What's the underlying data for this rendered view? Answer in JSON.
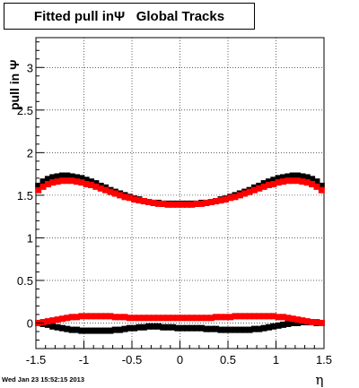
{
  "chart_data": {
    "type": "scatter",
    "title": "Fitted pull inΨ   Global Tracks",
    "xlabel": "η",
    "ylabel": "pull in  Ψ",
    "xlim": [
      -1.5,
      1.5
    ],
    "ylim": [
      -0.3,
      3.35
    ],
    "grid": true,
    "x_ticks": [
      -1.5,
      -1,
      -0.5,
      0,
      0.5,
      1,
      1.5
    ],
    "x_tick_labels": [
      "-1.5",
      "-1",
      "-0.5",
      "0",
      "0.5",
      "1",
      "1.5"
    ],
    "y_ticks": [
      0,
      0.5,
      1,
      1.5,
      2,
      2.5,
      3
    ],
    "y_tick_labels": [
      "0",
      "0.5",
      "1",
      "1.5",
      "2",
      "2.5",
      "3"
    ],
    "series": [
      {
        "color": "#000000",
        "marker": "square",
        "x": [
          -1.475,
          -1.425,
          -1.375,
          -1.325,
          -1.275,
          -1.225,
          -1.175,
          -1.125,
          -1.075,
          -1.025,
          -0.975,
          -0.925,
          -0.875,
          -0.825,
          -0.775,
          -0.725,
          -0.675,
          -0.625,
          -0.575,
          -0.525,
          -0.475,
          -0.425,
          -0.375,
          -0.325,
          -0.275,
          -0.225,
          -0.175,
          -0.125,
          -0.075,
          -0.025,
          0.025,
          0.075,
          0.125,
          0.175,
          0.225,
          0.275,
          0.325,
          0.375,
          0.425,
          0.475,
          0.525,
          0.575,
          0.625,
          0.675,
          0.725,
          0.775,
          0.825,
          0.875,
          0.925,
          0.975,
          1.025,
          1.075,
          1.125,
          1.175,
          1.225,
          1.275,
          1.325,
          1.375,
          1.425,
          1.475
        ],
        "y": [
          1.61,
          1.66,
          1.69,
          1.71,
          1.72,
          1.73,
          1.73,
          1.72,
          1.71,
          1.7,
          1.68,
          1.66,
          1.64,
          1.61,
          1.59,
          1.56,
          1.54,
          1.52,
          1.5,
          1.48,
          1.46,
          1.45,
          1.43,
          1.42,
          1.41,
          1.41,
          1.4,
          1.4,
          1.4,
          1.4,
          1.4,
          1.4,
          1.4,
          1.4,
          1.41,
          1.41,
          1.42,
          1.43,
          1.45,
          1.46,
          1.48,
          1.5,
          1.52,
          1.54,
          1.56,
          1.59,
          1.61,
          1.64,
          1.66,
          1.68,
          1.7,
          1.71,
          1.72,
          1.73,
          1.73,
          1.72,
          1.71,
          1.69,
          1.66,
          1.61
        ]
      },
      {
        "color": "#ff0000",
        "marker": "square",
        "x": [
          -1.475,
          -1.425,
          -1.375,
          -1.325,
          -1.275,
          -1.225,
          -1.175,
          -1.125,
          -1.075,
          -1.025,
          -0.975,
          -0.925,
          -0.875,
          -0.825,
          -0.775,
          -0.725,
          -0.675,
          -0.625,
          -0.575,
          -0.525,
          -0.475,
          -0.425,
          -0.375,
          -0.325,
          -0.275,
          -0.225,
          -0.175,
          -0.125,
          -0.075,
          -0.025,
          0.025,
          0.075,
          0.125,
          0.175,
          0.225,
          0.275,
          0.325,
          0.375,
          0.425,
          0.475,
          0.525,
          0.575,
          0.625,
          0.675,
          0.725,
          0.775,
          0.825,
          0.875,
          0.925,
          0.975,
          1.025,
          1.075,
          1.125,
          1.175,
          1.225,
          1.275,
          1.325,
          1.375,
          1.425,
          1.475
        ],
        "y": [
          1.56,
          1.6,
          1.63,
          1.65,
          1.66,
          1.67,
          1.67,
          1.67,
          1.66,
          1.65,
          1.63,
          1.62,
          1.6,
          1.58,
          1.56,
          1.54,
          1.52,
          1.5,
          1.48,
          1.47,
          1.45,
          1.44,
          1.43,
          1.42,
          1.41,
          1.4,
          1.4,
          1.39,
          1.39,
          1.39,
          1.39,
          1.39,
          1.39,
          1.4,
          1.4,
          1.41,
          1.42,
          1.43,
          1.44,
          1.45,
          1.47,
          1.48,
          1.5,
          1.52,
          1.54,
          1.56,
          1.58,
          1.6,
          1.62,
          1.63,
          1.65,
          1.66,
          1.67,
          1.67,
          1.67,
          1.66,
          1.65,
          1.63,
          1.6,
          1.56
        ]
      },
      {
        "color": "#000000",
        "marker": "square",
        "x": [
          -1.475,
          -1.425,
          -1.375,
          -1.325,
          -1.275,
          -1.225,
          -1.175,
          -1.125,
          -1.075,
          -1.025,
          -0.975,
          -0.925,
          -0.875,
          -0.825,
          -0.775,
          -0.725,
          -0.675,
          -0.625,
          -0.575,
          -0.525,
          -0.475,
          -0.425,
          -0.375,
          -0.325,
          -0.275,
          -0.225,
          -0.175,
          -0.125,
          -0.075,
          -0.025,
          0.025,
          0.075,
          0.125,
          0.175,
          0.225,
          0.275,
          0.325,
          0.375,
          0.425,
          0.475,
          0.525,
          0.575,
          0.625,
          0.675,
          0.725,
          0.775,
          0.825,
          0.875,
          0.925,
          0.975,
          1.025,
          1.075,
          1.125,
          1.175,
          1.225,
          1.275,
          1.325,
          1.375,
          1.425,
          1.475
        ],
        "y": [
          0.0,
          -0.01,
          -0.02,
          -0.04,
          -0.05,
          -0.06,
          -0.07,
          -0.08,
          -0.08,
          -0.09,
          -0.09,
          -0.09,
          -0.09,
          -0.09,
          -0.09,
          -0.09,
          -0.08,
          -0.08,
          -0.07,
          -0.06,
          -0.06,
          -0.05,
          -0.05,
          -0.04,
          -0.04,
          -0.04,
          -0.05,
          -0.05,
          -0.05,
          -0.06,
          -0.06,
          -0.06,
          -0.06,
          -0.06,
          -0.06,
          -0.07,
          -0.07,
          -0.07,
          -0.08,
          -0.08,
          -0.08,
          -0.08,
          -0.08,
          -0.08,
          -0.08,
          -0.07,
          -0.07,
          -0.06,
          -0.05,
          -0.04,
          -0.03,
          -0.02,
          -0.01,
          0.0,
          0.0,
          0.01,
          0.01,
          0.01,
          0.0,
          0.0
        ]
      },
      {
        "color": "#ff0000",
        "marker": "square",
        "x": [
          -1.475,
          -1.425,
          -1.375,
          -1.325,
          -1.275,
          -1.225,
          -1.175,
          -1.125,
          -1.075,
          -1.025,
          -0.975,
          -0.925,
          -0.875,
          -0.825,
          -0.775,
          -0.725,
          -0.675,
          -0.625,
          -0.575,
          -0.525,
          -0.475,
          -0.425,
          -0.375,
          -0.325,
          -0.275,
          -0.225,
          -0.175,
          -0.125,
          -0.075,
          -0.025,
          0.025,
          0.075,
          0.125,
          0.175,
          0.225,
          0.275,
          0.325,
          0.375,
          0.425,
          0.475,
          0.525,
          0.575,
          0.625,
          0.675,
          0.725,
          0.775,
          0.825,
          0.875,
          0.925,
          0.975,
          1.025,
          1.075,
          1.125,
          1.175,
          1.225,
          1.275,
          1.325,
          1.375,
          1.425,
          1.475
        ],
        "y": [
          0.0,
          0.01,
          0.02,
          0.03,
          0.04,
          0.05,
          0.06,
          0.07,
          0.07,
          0.08,
          0.08,
          0.08,
          0.08,
          0.08,
          0.08,
          0.08,
          0.07,
          0.07,
          0.07,
          0.06,
          0.06,
          0.06,
          0.06,
          0.06,
          0.06,
          0.06,
          0.06,
          0.06,
          0.06,
          0.06,
          0.06,
          0.06,
          0.06,
          0.06,
          0.06,
          0.06,
          0.06,
          0.07,
          0.07,
          0.07,
          0.07,
          0.08,
          0.08,
          0.08,
          0.08,
          0.08,
          0.08,
          0.08,
          0.08,
          0.08,
          0.07,
          0.07,
          0.06,
          0.05,
          0.04,
          0.03,
          0.02,
          0.01,
          0.01,
          0.0
        ]
      }
    ]
  },
  "footer": {
    "timestamp": "Wed Jan 23 15:52:15 2013"
  }
}
